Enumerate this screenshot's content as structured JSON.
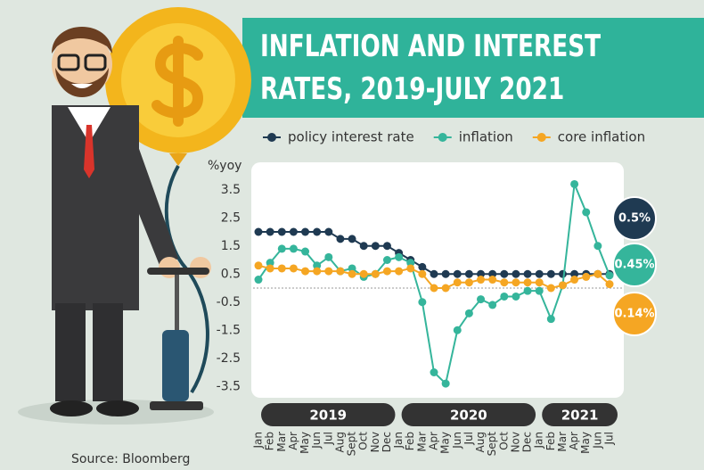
{
  "chart_data": {
    "type": "line",
    "title": "INFLATION AND INTEREST RATES, 2019-JULY 2021",
    "y_label": "%yoy",
    "source": "Source: Bloomberg",
    "categories": [
      "Jan",
      "Feb",
      "Mar",
      "Apr",
      "May",
      "Jun",
      "Jul",
      "Aug",
      "Sept",
      "Oct",
      "Nov",
      "Dec",
      "Jan",
      "Feb",
      "Mar",
      "Apr",
      "May",
      "Jun",
      "Jul",
      "Aug",
      "Sept",
      "Oct",
      "Nov",
      "Dec",
      "Jan",
      "Feb",
      "Mar",
      "Apr",
      "May",
      "Jun",
      "Jul"
    ],
    "x_groups": [
      "2019",
      "2020",
      "2021"
    ],
    "series": [
      {
        "name": "policy interest rate",
        "color": "#1f3a52",
        "values": [
          2,
          2,
          2,
          2,
          2,
          2,
          2,
          1.75,
          1.75,
          1.5,
          1.5,
          1.5,
          1.25,
          1,
          0.75,
          0.5,
          0.5,
          0.5,
          0.5,
          0.5,
          0.5,
          0.5,
          0.5,
          0.5,
          0.5,
          0.5,
          0.5,
          0.5,
          0.5,
          0.5,
          0.5
        ],
        "value_labels": [
          null,
          null,
          null,
          null,
          null,
          null,
          null,
          null,
          null,
          null,
          null,
          null,
          null,
          null,
          null,
          null,
          null,
          null,
          null,
          null,
          null,
          null,
          null,
          null,
          null,
          null,
          null,
          null,
          null,
          null,
          "0.5%"
        ]
      },
      {
        "name": "inflation",
        "color": "#35b59b",
        "values": [
          0.3,
          0.9,
          1.4,
          1.4,
          1.3,
          0.8,
          1.1,
          0.6,
          0.7,
          0.4,
          0.5,
          1,
          1.1,
          0.9,
          -0.5,
          -3,
          -3.4,
          -1.5,
          -0.9,
          -0.4,
          -0.6,
          -0.3,
          -0.3,
          -0.1,
          -0.1,
          -1.1,
          0.1,
          3.7,
          2.7,
          1.5,
          0.45
        ],
        "value_labels": [
          null,
          null,
          null,
          null,
          null,
          null,
          null,
          null,
          null,
          null,
          null,
          null,
          null,
          null,
          null,
          null,
          null,
          null,
          null,
          null,
          null,
          null,
          null,
          null,
          null,
          null,
          null,
          null,
          null,
          null,
          "0.45%"
        ]
      },
      {
        "name": "core inflation",
        "color": "#f5a623",
        "values": [
          0.8,
          0.7,
          0.7,
          0.7,
          0.6,
          0.6,
          0.6,
          0.6,
          0.5,
          0.5,
          0.5,
          0.6,
          0.6,
          0.7,
          0.5,
          0,
          0,
          0.2,
          0.2,
          0.3,
          0.3,
          0.2,
          0.2,
          0.2,
          0.2,
          0,
          0.1,
          0.3,
          0.4,
          0.5,
          0.14
        ],
        "value_labels": [
          null,
          null,
          null,
          null,
          null,
          null,
          null,
          null,
          null,
          null,
          null,
          null,
          null,
          null,
          null,
          null,
          null,
          null,
          null,
          null,
          null,
          null,
          null,
          null,
          null,
          null,
          null,
          null,
          null,
          null,
          "0.14%"
        ]
      }
    ],
    "ylim": [
      -4,
      4
    ],
    "yticks": [
      3.5,
      2.5,
      1.5,
      0.5,
      -0.5,
      -1.5,
      -2.5,
      -3.5
    ],
    "zero_line": true,
    "legend": "top"
  }
}
